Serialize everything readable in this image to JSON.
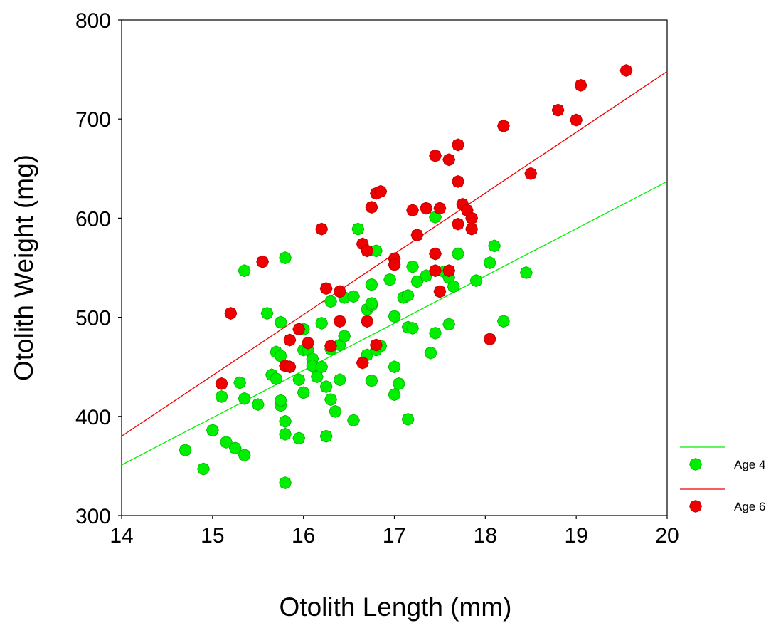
{
  "chart_data": {
    "type": "scatter",
    "xlabel": "Otolith Length (mm)",
    "ylabel": "Otolith Weight (mg)",
    "xlim": [
      14,
      20
    ],
    "ylim": [
      300,
      800
    ],
    "xticks": [
      14,
      15,
      16,
      17,
      18,
      19,
      20
    ],
    "yticks": [
      300,
      400,
      500,
      600,
      700,
      800
    ],
    "xtick_labels": [
      "14",
      "15",
      "16",
      "17",
      "18",
      "19",
      "20"
    ],
    "ytick_labels": [
      "300",
      "400",
      "500",
      "600",
      "700",
      "800"
    ],
    "grid": false,
    "legend_position": "bottom-right, outside plot",
    "series": [
      {
        "name": "Age 4",
        "color": "#00ee00",
        "marker": "diamond",
        "fit_line": {
          "x": [
            14,
            20
          ],
          "y": [
            351,
            637
          ]
        },
        "points": [
          [
            14.7,
            366
          ],
          [
            14.9,
            347
          ],
          [
            15.0,
            386
          ],
          [
            15.1,
            420
          ],
          [
            15.15,
            374
          ],
          [
            15.25,
            368
          ],
          [
            15.3,
            434
          ],
          [
            15.35,
            418
          ],
          [
            15.35,
            361
          ],
          [
            15.35,
            547
          ],
          [
            15.5,
            412
          ],
          [
            15.6,
            504
          ],
          [
            15.65,
            442
          ],
          [
            15.7,
            465
          ],
          [
            15.7,
            438
          ],
          [
            15.75,
            411
          ],
          [
            15.75,
            416
          ],
          [
            15.75,
            495
          ],
          [
            15.75,
            461
          ],
          [
            15.8,
            560
          ],
          [
            15.8,
            382
          ],
          [
            15.8,
            395
          ],
          [
            15.8,
            333
          ],
          [
            15.95,
            378
          ],
          [
            15.95,
            437
          ],
          [
            16.0,
            488
          ],
          [
            16.0,
            424
          ],
          [
            16.0,
            467
          ],
          [
            16.05,
            467
          ],
          [
            16.1,
            458
          ],
          [
            16.1,
            451
          ],
          [
            16.15,
            440
          ],
          [
            16.2,
            494
          ],
          [
            16.2,
            450
          ],
          [
            16.25,
            430
          ],
          [
            16.25,
            380
          ],
          [
            16.3,
            468
          ],
          [
            16.3,
            417
          ],
          [
            16.3,
            516
          ],
          [
            16.35,
            405
          ],
          [
            16.4,
            437
          ],
          [
            16.4,
            472
          ],
          [
            16.45,
            481
          ],
          [
            16.45,
            520
          ],
          [
            16.55,
            396
          ],
          [
            16.55,
            521
          ],
          [
            16.6,
            589
          ],
          [
            16.7,
            462
          ],
          [
            16.7,
            508
          ],
          [
            16.75,
            533
          ],
          [
            16.75,
            512
          ],
          [
            16.75,
            514
          ],
          [
            16.75,
            436
          ],
          [
            16.8,
            567
          ],
          [
            16.8,
            467
          ],
          [
            16.85,
            471
          ],
          [
            16.95,
            538
          ],
          [
            17.0,
            450
          ],
          [
            17.0,
            422
          ],
          [
            17.0,
            501
          ],
          [
            17.05,
            433
          ],
          [
            17.1,
            520
          ],
          [
            17.15,
            522
          ],
          [
            17.15,
            490
          ],
          [
            17.15,
            397
          ],
          [
            17.2,
            551
          ],
          [
            17.2,
            489
          ],
          [
            17.25,
            536
          ],
          [
            17.35,
            542
          ],
          [
            17.4,
            464
          ],
          [
            17.45,
            484
          ],
          [
            17.45,
            601
          ],
          [
            17.55,
            546
          ],
          [
            17.6,
            540
          ],
          [
            17.6,
            493
          ],
          [
            17.65,
            531
          ],
          [
            17.7,
            564
          ],
          [
            17.9,
            537
          ],
          [
            18.05,
            555
          ],
          [
            18.1,
            572
          ],
          [
            18.2,
            496
          ],
          [
            18.45,
            545
          ]
        ]
      },
      {
        "name": "Age 6",
        "color": "#ee0000",
        "marker": "diamond",
        "fit_line": {
          "x": [
            14,
            20
          ],
          "y": [
            380,
            748
          ]
        },
        "points": [
          [
            15.1,
            433
          ],
          [
            15.2,
            504
          ],
          [
            15.55,
            556
          ],
          [
            15.8,
            451
          ],
          [
            15.85,
            450
          ],
          [
            15.85,
            477
          ],
          [
            15.95,
            488
          ],
          [
            16.05,
            474
          ],
          [
            16.2,
            589
          ],
          [
            16.25,
            529
          ],
          [
            16.3,
            471
          ],
          [
            16.4,
            526
          ],
          [
            16.4,
            496
          ],
          [
            16.65,
            454
          ],
          [
            16.65,
            574
          ],
          [
            16.7,
            567
          ],
          [
            16.7,
            496
          ],
          [
            16.75,
            611
          ],
          [
            16.8,
            625
          ],
          [
            16.8,
            472
          ],
          [
            16.85,
            627
          ],
          [
            17.0,
            559
          ],
          [
            17.0,
            553
          ],
          [
            17.2,
            608
          ],
          [
            17.25,
            583
          ],
          [
            17.35,
            610
          ],
          [
            17.45,
            547
          ],
          [
            17.45,
            564
          ],
          [
            17.45,
            663
          ],
          [
            17.5,
            526
          ],
          [
            17.5,
            610
          ],
          [
            17.6,
            659
          ],
          [
            17.6,
            547
          ],
          [
            17.7,
            674
          ],
          [
            17.7,
            637
          ],
          [
            17.7,
            594
          ],
          [
            17.75,
            614
          ],
          [
            17.8,
            608
          ],
          [
            17.85,
            589
          ],
          [
            17.85,
            600
          ],
          [
            18.05,
            478
          ],
          [
            18.2,
            693
          ],
          [
            18.5,
            645
          ],
          [
            18.8,
            709
          ],
          [
            19.0,
            699
          ],
          [
            19.05,
            734
          ],
          [
            19.55,
            749
          ]
        ]
      }
    ]
  }
}
